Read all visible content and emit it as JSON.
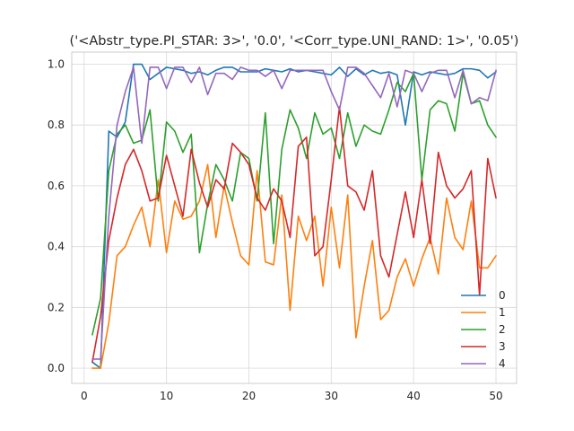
{
  "chart_data": {
    "type": "line",
    "title": "('<Abstr_type.PI_STAR: 3>', '0.0', '<Corr_type.UNI_RAND: 1>', '0.05')",
    "xlabel": "",
    "ylabel": "",
    "xlim": [
      -1.5,
      52.5
    ],
    "ylim": [
      -0.05,
      1.04
    ],
    "xticks": [
      0,
      10,
      20,
      30,
      40,
      50
    ],
    "yticks": [
      0.0,
      0.2,
      0.4,
      0.6,
      0.8,
      1.0
    ],
    "xtick_labels": [
      "0",
      "10",
      "20",
      "30",
      "40",
      "50"
    ],
    "ytick_labels": [
      "0.0",
      "0.2",
      "0.4",
      "0.6",
      "0.8",
      "1.0"
    ],
    "grid": true,
    "legend_position": "lower-right",
    "x": [
      1,
      2,
      3,
      4,
      5,
      6,
      7,
      8,
      9,
      10,
      11,
      12,
      13,
      14,
      15,
      16,
      17,
      18,
      19,
      20,
      21,
      22,
      23,
      24,
      25,
      26,
      27,
      28,
      29,
      30,
      31,
      32,
      33,
      34,
      35,
      36,
      37,
      38,
      39,
      40,
      41,
      42,
      43,
      44,
      45,
      46,
      47,
      48,
      49,
      50
    ],
    "series": [
      {
        "name": "0",
        "color": "#1f77b4",
        "values": [
          0.02,
          0.0,
          0.78,
          0.76,
          0.81,
          1.0,
          1.0,
          0.95,
          0.97,
          0.99,
          0.985,
          0.98,
          0.97,
          0.975,
          0.965,
          0.98,
          0.99,
          0.99,
          0.975,
          0.975,
          0.975,
          0.985,
          0.98,
          0.975,
          0.985,
          0.975,
          0.98,
          0.975,
          0.97,
          0.965,
          0.99,
          0.96,
          0.985,
          0.965,
          0.98,
          0.97,
          0.975,
          0.965,
          0.8,
          0.975,
          0.965,
          0.975,
          0.97,
          0.965,
          0.97,
          0.985,
          0.985,
          0.98,
          0.955,
          0.975
        ]
      },
      {
        "name": "1",
        "color": "#ff7f0e",
        "values": [
          0.0,
          0.0,
          0.15,
          0.37,
          0.4,
          0.47,
          0.53,
          0.4,
          0.62,
          0.38,
          0.55,
          0.49,
          0.5,
          0.55,
          0.67,
          0.43,
          0.6,
          0.48,
          0.37,
          0.34,
          0.65,
          0.35,
          0.34,
          0.57,
          0.19,
          0.5,
          0.42,
          0.5,
          0.27,
          0.53,
          0.33,
          0.57,
          0.1,
          0.27,
          0.42,
          0.16,
          0.19,
          0.3,
          0.36,
          0.27,
          0.36,
          0.43,
          0.31,
          0.56,
          0.43,
          0.39,
          0.55,
          0.33,
          0.33,
          0.37
        ]
      },
      {
        "name": "2",
        "color": "#2ca02c",
        "values": [
          0.11,
          0.23,
          0.65,
          0.77,
          0.8,
          0.74,
          0.75,
          0.85,
          0.55,
          0.81,
          0.78,
          0.71,
          0.77,
          0.38,
          0.54,
          0.67,
          0.62,
          0.55,
          0.71,
          0.69,
          0.55,
          0.84,
          0.41,
          0.72,
          0.85,
          0.79,
          0.69,
          0.84,
          0.77,
          0.79,
          0.69,
          0.84,
          0.73,
          0.8,
          0.78,
          0.77,
          0.85,
          0.94,
          0.91,
          0.97,
          0.62,
          0.85,
          0.88,
          0.87,
          0.78,
          0.97,
          0.87,
          0.88,
          0.8,
          0.76
        ]
      },
      {
        "name": "3",
        "color": "#d62728",
        "values": [
          0.02,
          0.17,
          0.42,
          0.56,
          0.67,
          0.72,
          0.65,
          0.55,
          0.56,
          0.7,
          0.6,
          0.5,
          0.72,
          0.61,
          0.53,
          0.62,
          0.59,
          0.74,
          0.71,
          0.67,
          0.56,
          0.52,
          0.59,
          0.55,
          0.43,
          0.73,
          0.76,
          0.37,
          0.4,
          0.62,
          0.86,
          0.6,
          0.58,
          0.52,
          0.65,
          0.37,
          0.3,
          0.44,
          0.58,
          0.43,
          0.62,
          0.41,
          0.71,
          0.6,
          0.56,
          0.59,
          0.65,
          0.24,
          0.69,
          0.56
        ]
      },
      {
        "name": "4",
        "color": "#9467bd",
        "values": [
          0.03,
          0.03,
          0.5,
          0.8,
          0.91,
          0.99,
          0.74,
          0.99,
          0.99,
          0.92,
          0.99,
          0.99,
          0.94,
          0.99,
          0.9,
          0.97,
          0.97,
          0.95,
          0.99,
          0.98,
          0.98,
          0.96,
          0.98,
          0.92,
          0.98,
          0.98,
          0.98,
          0.98,
          0.98,
          0.91,
          0.85,
          0.99,
          0.99,
          0.97,
          0.93,
          0.89,
          0.97,
          0.86,
          0.98,
          0.97,
          0.91,
          0.97,
          0.98,
          0.98,
          0.89,
          0.98,
          0.87,
          0.89,
          0.88,
          0.98
        ]
      }
    ]
  }
}
